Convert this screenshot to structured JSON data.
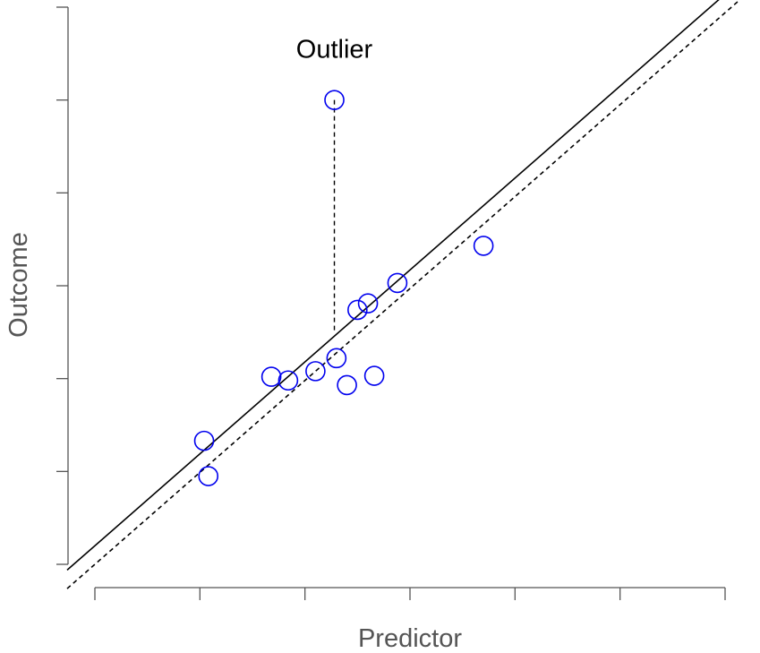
{
  "chart_data": {
    "type": "scatter",
    "title": "",
    "xlabel": "Predictor",
    "ylabel": "Outcome",
    "xlim": [
      0,
      3
    ],
    "ylim": [
      0,
      6
    ],
    "x_ticks": [
      0,
      0.5,
      1,
      1.5,
      2,
      2.5,
      3
    ],
    "y_ticks": [
      1,
      2,
      3,
      4,
      5,
      6
    ],
    "tick_labels_shown": false,
    "grid": false,
    "point_color": "#0000ee",
    "points": [
      {
        "x": 0.52,
        "y": 1.33
      },
      {
        "x": 0.54,
        "y": 0.95
      },
      {
        "x": 0.84,
        "y": 2.02
      },
      {
        "x": 0.92,
        "y": 1.98
      },
      {
        "x": 1.05,
        "y": 2.08
      },
      {
        "x": 1.14,
        "y": 5.0
      },
      {
        "x": 1.15,
        "y": 2.22
      },
      {
        "x": 1.2,
        "y": 1.93
      },
      {
        "x": 1.25,
        "y": 2.74
      },
      {
        "x": 1.3,
        "y": 2.81
      },
      {
        "x": 1.33,
        "y": 2.03
      },
      {
        "x": 1.44,
        "y": 3.03
      },
      {
        "x": 1.85,
        "y": 3.43
      }
    ],
    "lines": [
      {
        "style": "solid",
        "color": "#000000",
        "intercept": 0.2,
        "slope": 1.98
      },
      {
        "style": "dashed",
        "color": "#000000",
        "intercept": 0.0,
        "slope": 1.98
      }
    ],
    "outlier_segment": {
      "x": 1.14,
      "y_from": 5.0,
      "y_to": 2.5
    },
    "annotations": [
      {
        "text": "Outlier",
        "x": 1.14,
        "y": 5.55
      }
    ]
  }
}
